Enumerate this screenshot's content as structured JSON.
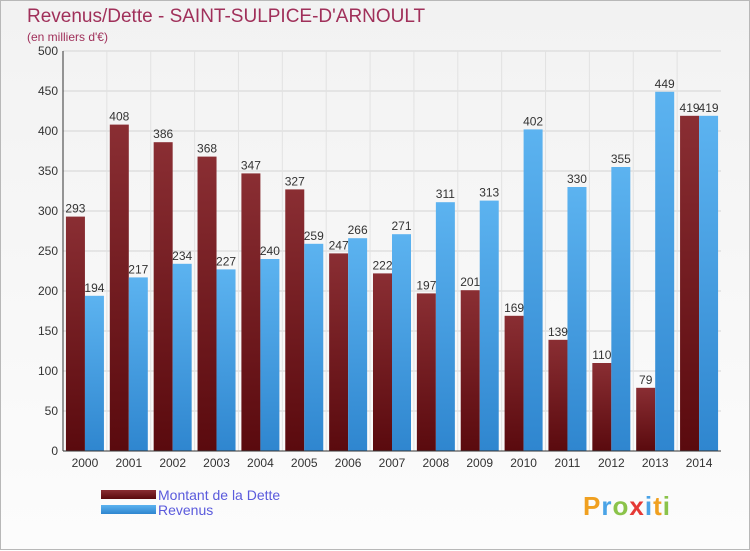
{
  "chart_data": {
    "type": "bar",
    "title": "Revenus/Dette - SAINT-SULPICE-D'ARNOULT",
    "subtitle": "(en milliers d'€)",
    "categories": [
      "2000",
      "2001",
      "2002",
      "2003",
      "2004",
      "2005",
      "2006",
      "2007",
      "2008",
      "2009",
      "2010",
      "2011",
      "2012",
      "2013",
      "2014"
    ],
    "series": [
      {
        "name": "Montant de la Dette",
        "color": "#6e1a1e",
        "values": [
          293,
          408,
          386,
          368,
          347,
          327,
          247,
          222,
          197,
          201,
          169,
          139,
          110,
          79,
          419
        ]
      },
      {
        "name": "Revenus",
        "color": "#4aa3e6",
        "values": [
          194,
          217,
          234,
          227,
          240,
          259,
          266,
          271,
          311,
          313,
          402,
          330,
          355,
          449,
          419
        ]
      }
    ],
    "yticks": [
      0,
      50,
      100,
      150,
      200,
      250,
      300,
      350,
      400,
      450,
      500
    ],
    "ylim": [
      0,
      500
    ],
    "grid": true
  },
  "legend": {
    "debt_label": "Montant de la Dette",
    "revenue_label": "Revenus"
  },
  "logo": {
    "letters": [
      "P",
      "r",
      "o",
      "x",
      "i",
      "t",
      "i"
    ],
    "colors": [
      "#f0a020",
      "#4aa3e6",
      "#8bc34a",
      "#e53935",
      "#4aa3e6",
      "#f0a020",
      "#8bc34a"
    ]
  }
}
